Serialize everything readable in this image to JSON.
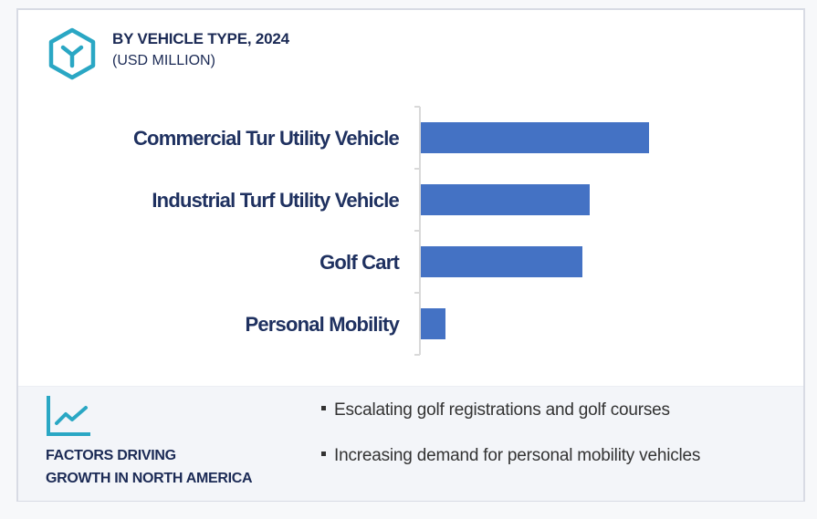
{
  "header": {
    "title": "BY VEHICLE TYPE, 2024",
    "subtitle": "(USD MILLION)",
    "icon": "hexagon-y-icon"
  },
  "colors": {
    "bar": "#4472c4",
    "accent": "#2aa7c4",
    "title": "#1b2a55"
  },
  "chart_data": {
    "type": "bar",
    "orientation": "horizontal",
    "title": "BY VEHICLE TYPE, 2024",
    "subtitle": "(USD MILLION)",
    "xlabel": "",
    "ylabel": "",
    "categories": [
      "Commercial Tur Utility Vehicle",
      "Industrial Turf Utility Vehicle",
      "Golf Cart",
      "Personal Mobility"
    ],
    "values": [
      250,
      185,
      177,
      27
    ],
    "xlim": [
      0,
      250
    ],
    "grid": false,
    "legend": "none",
    "note": "values relative; no axis scale shown"
  },
  "factors": {
    "icon": "trend-line-icon",
    "title_line1": "FACTORS DRIVING",
    "title_line2": "GROWTH IN NORTH AMERICA",
    "bullets": [
      "Escalating golf registrations and golf courses",
      "Increasing demand for personal mobility vehicles"
    ]
  }
}
